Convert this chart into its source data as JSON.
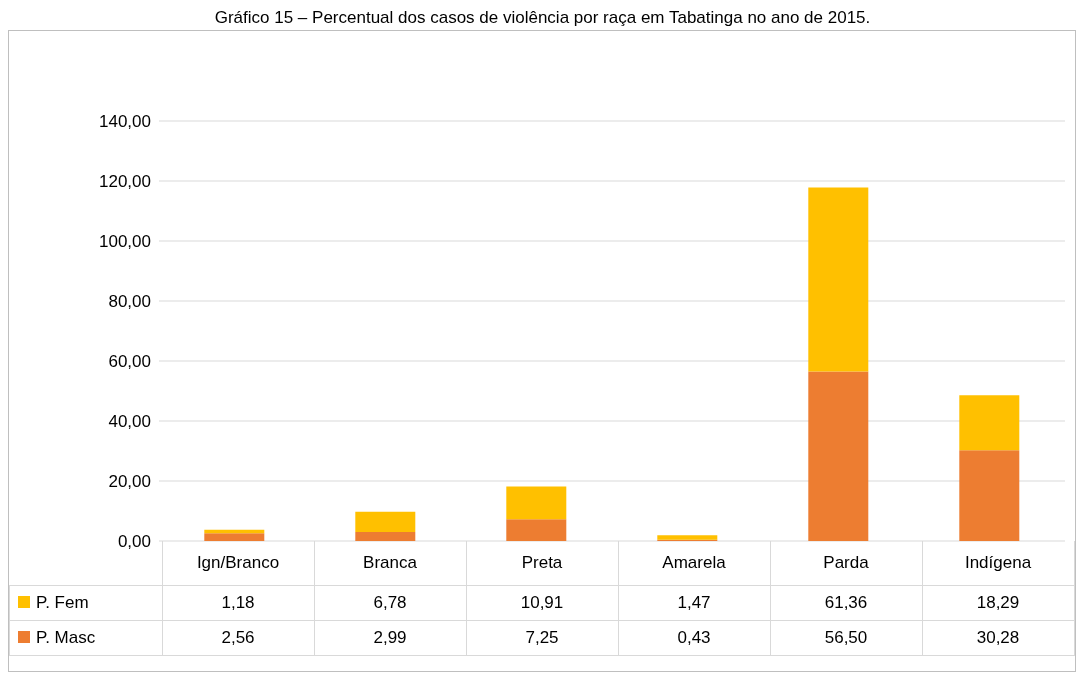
{
  "chart_data": {
    "type": "bar",
    "title": "Gráfico 15 – Percentual dos casos de violência por raça em Tabatinga no ano de 2015.",
    "categories": [
      "Ign/Branco",
      "Branca",
      "Preta",
      "Amarela",
      "Parda",
      "Indígena"
    ],
    "series": [
      {
        "name": "P. Masc",
        "color": "#ed7d31",
        "values": [
          2.56,
          2.99,
          7.25,
          0.43,
          56.5,
          30.28
        ],
        "value_labels": [
          "2,56",
          "2,99",
          "7,25",
          "0,43",
          "56,50",
          "30,28"
        ]
      },
      {
        "name": "P. Fem",
        "color": "#ffc000",
        "values": [
          1.18,
          6.78,
          10.91,
          1.47,
          61.36,
          18.29
        ],
        "value_labels": [
          "1,18",
          "6,78",
          "10,91",
          "1,47",
          "61,36",
          "18,29"
        ]
      }
    ],
    "stacked": true,
    "ylim": [
      0,
      140
    ],
    "yticks": [
      {
        "value": 0,
        "label": "0,00"
      },
      {
        "value": 20,
        "label": "20,00"
      },
      {
        "value": 40,
        "label": "40,00"
      },
      {
        "value": 60,
        "label": "60,00"
      },
      {
        "value": 80,
        "label": "80,00"
      },
      {
        "value": 100,
        "label": "100,00"
      },
      {
        "value": 120,
        "label": "120,00"
      },
      {
        "value": 140,
        "label": "140,00"
      }
    ],
    "grid": "y",
    "legend": "bottom"
  }
}
